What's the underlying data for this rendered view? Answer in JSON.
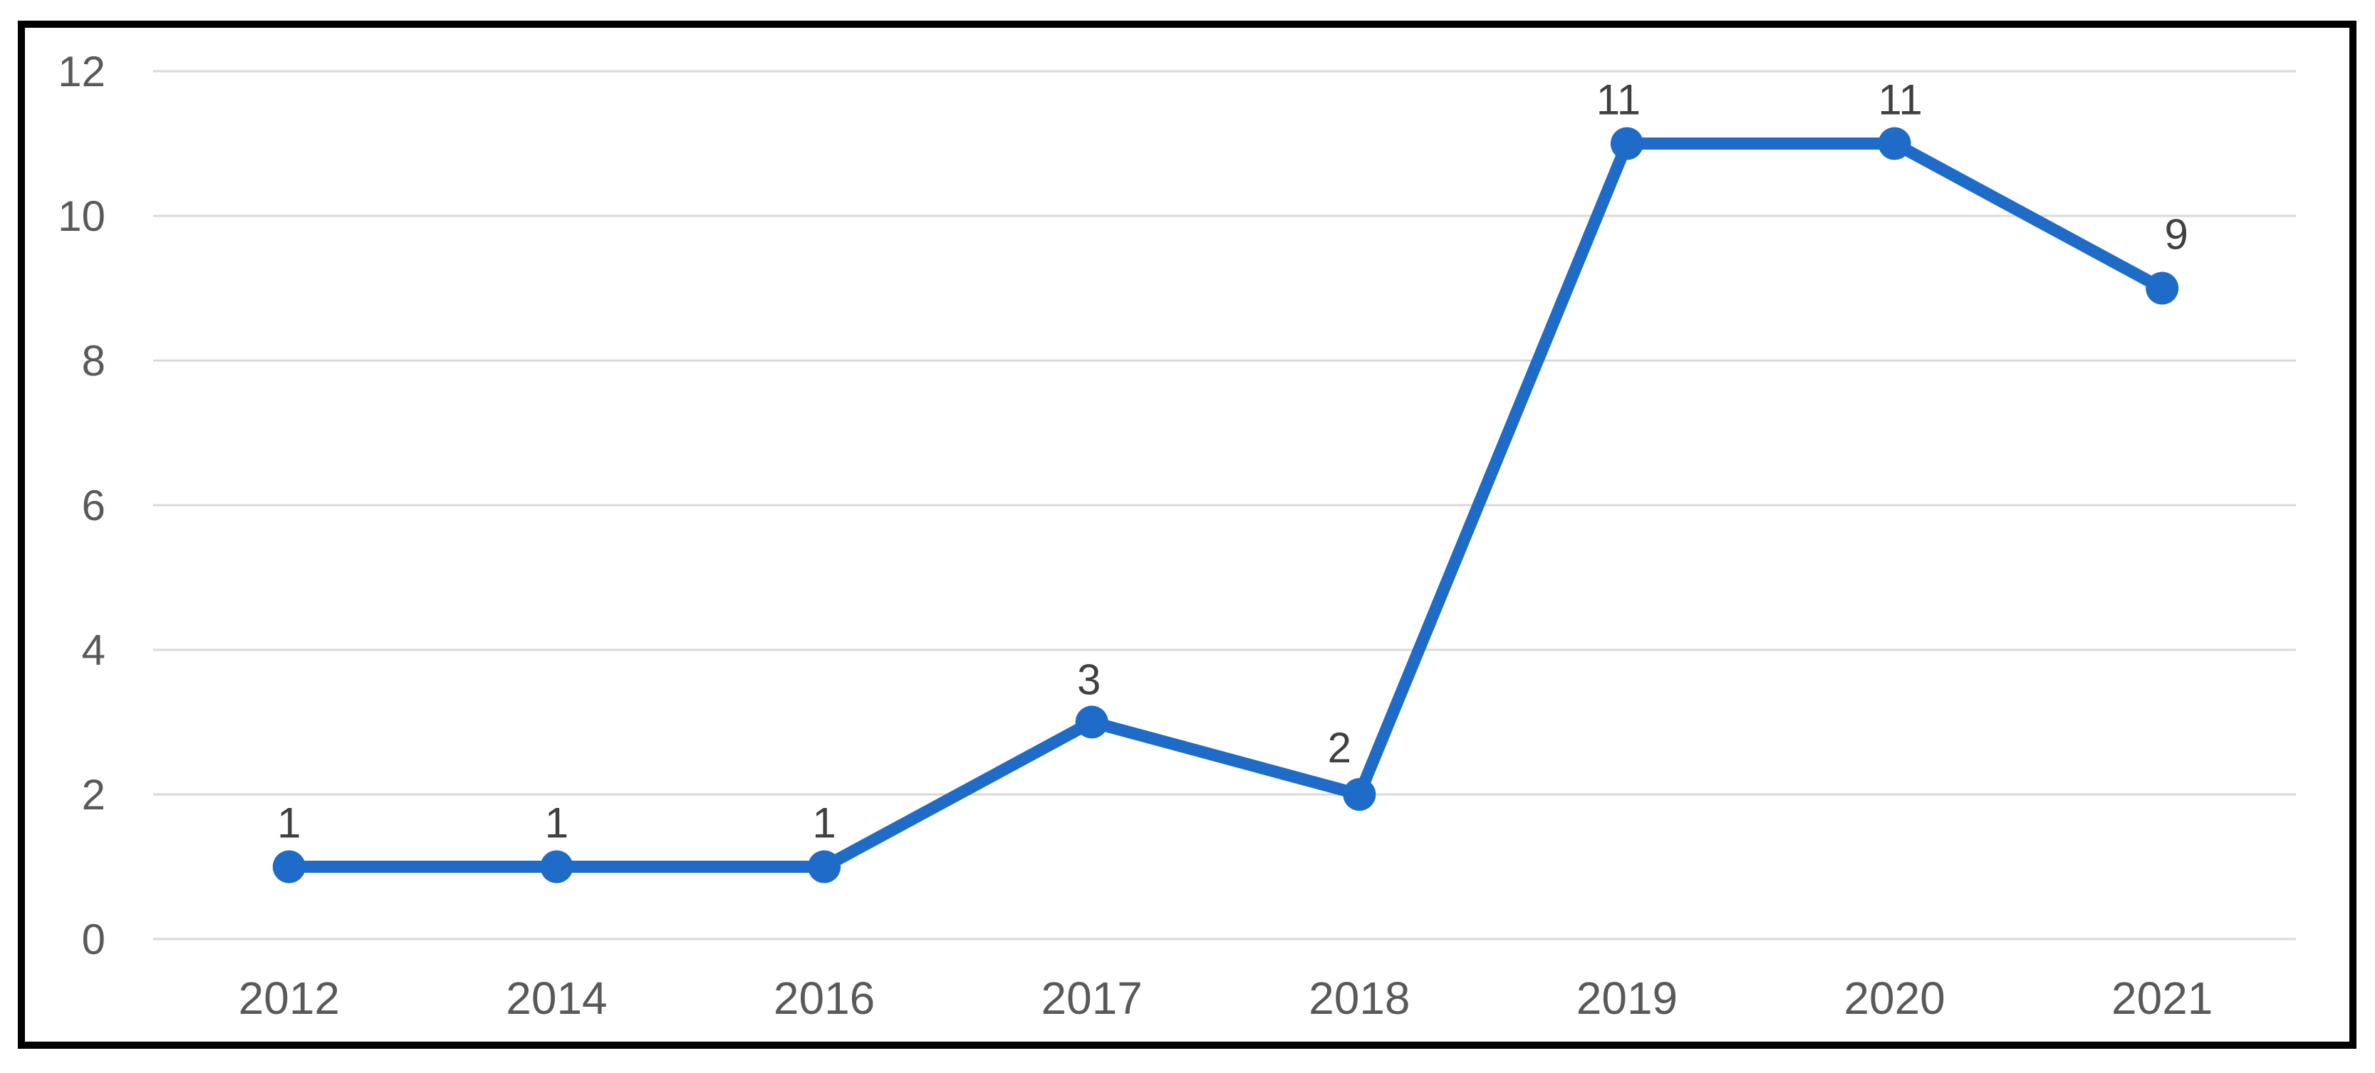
{
  "chart_data": {
    "type": "line",
    "title": "",
    "xlabel": "",
    "ylabel": "",
    "categories": [
      "2012",
      "2014",
      "2016",
      "2017",
      "2018",
      "2019",
      "2020",
      "2021"
    ],
    "values": [
      1,
      1,
      1,
      3,
      2,
      11,
      11,
      9
    ],
    "data_labels": [
      "1",
      "1",
      "1",
      "3",
      "2",
      "11",
      "11",
      "9"
    ],
    "ylim": [
      0,
      12
    ],
    "y_ticks": [
      "0",
      "2",
      "4",
      "6",
      "8",
      "10",
      "12"
    ],
    "grid": true,
    "legend": false,
    "marker": "circle",
    "colors": {
      "line": "#1E6BC8",
      "marker": "#1E6BC8",
      "gridline": "#D9D9D9",
      "axis_label": "#595959",
      "data_label": "#404040",
      "frame_border": "#000000",
      "background": "#FFFFFF"
    }
  }
}
